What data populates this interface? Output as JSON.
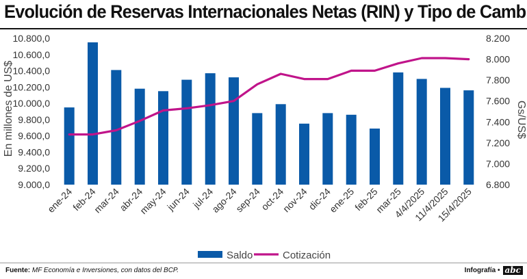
{
  "title": "Evolución de Reservas Internacionales Netas (RIN) y Tipo de Cambio",
  "footer": {
    "source_label": "Fuente:",
    "source_text": "MF Economía e Inversiones, con datos del BCP.",
    "credit_label": "Infografía •",
    "logo_text": "abc"
  },
  "chart_data": {
    "type": "bar",
    "categories": [
      "ene-24",
      "feb-24",
      "mar-24",
      "abr-24",
      "may-24",
      "jun-24",
      "jul-24",
      "ago-24",
      "sep-24",
      "oct-24",
      "nov-24",
      "dic-24",
      "ene-25",
      "feb-25",
      "mar-25",
      "4/4/2025",
      "11/4/2025",
      "15/4/2025"
    ],
    "series": [
      {
        "name": "Saldo",
        "type": "bar",
        "axis": "left",
        "color": "#0a5aa8",
        "values": [
          9950,
          10750,
          10410,
          10180,
          10150,
          10290,
          10370,
          10320,
          9880,
          9990,
          9750,
          9880,
          9860,
          9690,
          10380,
          10300,
          10190,
          10160
        ]
      },
      {
        "name": "Cotización",
        "type": "line",
        "axis": "right",
        "color": "#c0148a",
        "values": [
          7280,
          7280,
          7320,
          7410,
          7510,
          7530,
          7560,
          7600,
          7760,
          7860,
          7810,
          7810,
          7890,
          7890,
          7960,
          8010,
          8010,
          8000
        ]
      }
    ],
    "ylabel": "En millones de US$",
    "ylabel_right": "Gs/US$",
    "ylim": [
      9000,
      10800
    ],
    "ylim_right": [
      6800,
      8200
    ],
    "yticks": [
      "9.000,0",
      "9.200,0",
      "9.400,0",
      "9.600,0",
      "9.800,0",
      "10.000,0",
      "10.200,0",
      "10.400,0",
      "10.600,0",
      "10.800,0"
    ],
    "yticks_right": [
      "6.800",
      "7.000",
      "7.200",
      "7.400",
      "7.600",
      "7.800",
      "8.000",
      "8.200"
    ],
    "legend": "bottom",
    "grid": false
  }
}
